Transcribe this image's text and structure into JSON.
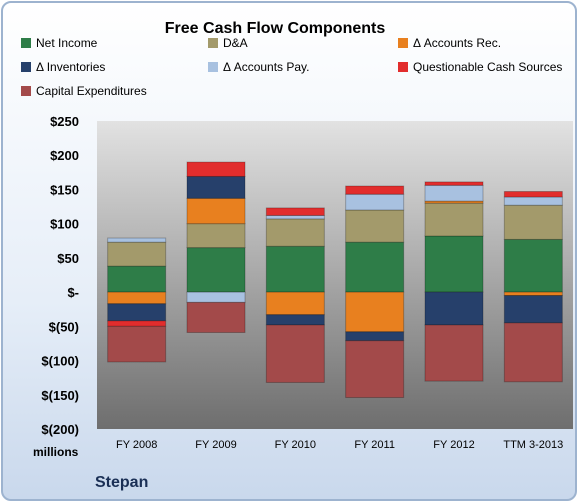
{
  "chart_data": {
    "type": "bar",
    "stacked": true,
    "title": "Free Cash Flow Components",
    "units_label": "millions",
    "company": "Stepan",
    "categories": [
      "FY 2008",
      "FY 2009",
      "FY 2010",
      "FY 2011",
      "FY 2012",
      "TTM 3-2013"
    ],
    "ylim": [
      -200,
      250
    ],
    "y_ticks": [
      250,
      200,
      150,
      100,
      50,
      0,
      -50,
      -100,
      -150,
      -200
    ],
    "y_tick_labels": [
      "$250",
      "$200",
      "$150",
      "$100",
      "$50",
      "$-",
      "$(50)",
      "$(100)",
      "$(150)",
      "$(200)"
    ],
    "grid": false,
    "legend_position": "top",
    "series": [
      {
        "name": "Net Income",
        "color": "#2e7d48",
        "values": [
          38,
          65,
          67,
          73,
          82,
          77
        ]
      },
      {
        "name": "D&A",
        "color": "#a39a6b",
        "values": [
          35,
          35,
          40,
          47,
          48,
          50
        ]
      },
      {
        "name": "Δ Accounts Rec.",
        "color": "#e8801f",
        "values": [
          -17,
          37,
          -33,
          -58,
          3,
          -5
        ]
      },
      {
        "name": "Δ Inventories",
        "color": "#26406b",
        "values": [
          -25,
          32,
          -15,
          -13,
          -48,
          -40
        ]
      },
      {
        "name": "Δ Accounts Pay.",
        "color": "#a8c1e0",
        "values": [
          6,
          -15,
          5,
          23,
          23,
          12
        ]
      },
      {
        "name": "Questionable Cash Sources",
        "color": "#e22d2d",
        "values": [
          -8,
          21,
          11,
          12,
          5,
          8
        ]
      },
      {
        "name": "Capital Expenditures",
        "color": "#a34a4a",
        "values": [
          -52,
          -44,
          -84,
          -83,
          -82,
          -86
        ]
      }
    ]
  }
}
